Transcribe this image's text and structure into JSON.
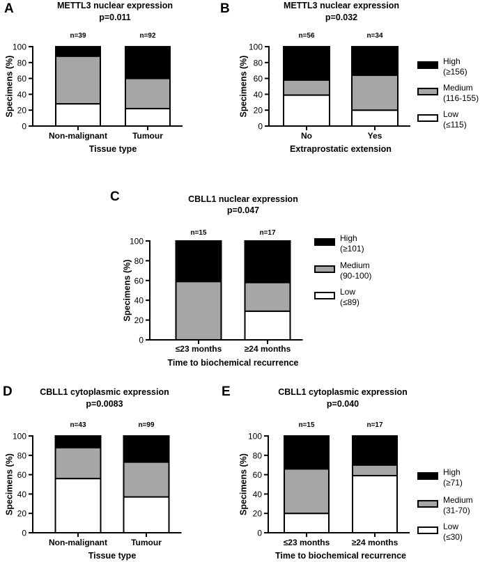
{
  "chart_data": [
    {
      "panel": "A",
      "type": "bar",
      "stacked": true,
      "title": "METTL3 nuclear expression",
      "subtitle": "p=0.011",
      "xlabel": "Tissue type",
      "ylabel": "Specimens (%)",
      "ylim": [
        0,
        100
      ],
      "yticks": [
        "0",
        "20",
        "40",
        "60",
        "80",
        "100"
      ],
      "categories": [
        "Non-malignant",
        "Tumour"
      ],
      "n_labels": [
        "n=39",
        "n=92"
      ],
      "series": [
        {
          "name": "Low",
          "values": [
            28,
            22
          ]
        },
        {
          "name": "Medium",
          "values": [
            60,
            38
          ]
        },
        {
          "name": "High",
          "values": [
            12,
            40
          ]
        }
      ]
    },
    {
      "panel": "B",
      "type": "bar",
      "stacked": true,
      "title": "METTL3 nuclear expression",
      "subtitle": "p=0.032",
      "xlabel": "Extraprostatic extension",
      "ylabel": "Specimens (%)",
      "ylim": [
        0,
        100
      ],
      "yticks": [
        "0",
        "20",
        "40",
        "60",
        "80",
        "100"
      ],
      "categories": [
        "No",
        "Yes"
      ],
      "n_labels": [
        "n=56",
        "n=34"
      ],
      "series": [
        {
          "name": "Low",
          "values": [
            39,
            20
          ]
        },
        {
          "name": "Medium",
          "values": [
            19,
            44
          ]
        },
        {
          "name": "High",
          "values": [
            42,
            36
          ]
        }
      ],
      "legend": [
        {
          "name": "High",
          "range": "(≥156)"
        },
        {
          "name": "Medium",
          "range": "(116-155)"
        },
        {
          "name": "Low",
          "range": "(≤115)"
        }
      ]
    },
    {
      "panel": "C",
      "type": "bar",
      "stacked": true,
      "title": "CBLL1 nuclear expression",
      "subtitle": "p=0.047",
      "xlabel": "Time to biochemical recurrence",
      "ylabel": "Specimens (%)",
      "ylim": [
        0,
        100
      ],
      "yticks": [
        "0",
        "20",
        "40",
        "60",
        "80",
        "100"
      ],
      "categories": [
        "≤23 months",
        "≥24 months"
      ],
      "n_labels": [
        "n=15",
        "n=17"
      ],
      "series": [
        {
          "name": "Low",
          "values": [
            0,
            29
          ]
        },
        {
          "name": "Medium",
          "values": [
            59,
            29
          ]
        },
        {
          "name": "High",
          "values": [
            41,
            42
          ]
        }
      ],
      "legend": [
        {
          "name": "High",
          "range": "(≥101)"
        },
        {
          "name": "Medium",
          "range": "(90-100)"
        },
        {
          "name": "Low",
          "range": "(≤89)"
        }
      ]
    },
    {
      "panel": "D",
      "type": "bar",
      "stacked": true,
      "title": "CBLL1 cytoplasmic expression",
      "subtitle": "p=0.0083",
      "xlabel": "Tissue type",
      "ylabel": "Specimens (%)",
      "ylim": [
        0,
        100
      ],
      "yticks": [
        "0",
        "20",
        "40",
        "60",
        "80",
        "100"
      ],
      "categories": [
        "Non-malignant",
        "Tumour"
      ],
      "n_labels": [
        "n=43",
        "n=99"
      ],
      "series": [
        {
          "name": "Low",
          "values": [
            56,
            37
          ]
        },
        {
          "name": "Medium",
          "values": [
            32,
            36
          ]
        },
        {
          "name": "High",
          "values": [
            12,
            27
          ]
        }
      ]
    },
    {
      "panel": "E",
      "type": "bar",
      "stacked": true,
      "title": "CBLL1 cytoplasmic expression",
      "subtitle": "p=0.040",
      "xlabel": "Time to biochemical recurrence",
      "ylabel": "Specimens (%)",
      "ylim": [
        0,
        100
      ],
      "yticks": [
        "0",
        "20",
        "40",
        "60",
        "80",
        "100"
      ],
      "categories": [
        "≤23 months",
        "≥24 months"
      ],
      "n_labels": [
        "n=15",
        "n=17"
      ],
      "series": [
        {
          "name": "Low",
          "values": [
            20,
            59
          ]
        },
        {
          "name": "Medium",
          "values": [
            46,
            11
          ]
        },
        {
          "name": "High",
          "values": [
            34,
            30
          ]
        }
      ],
      "legend": [
        {
          "name": "High",
          "range": "(≥71)"
        },
        {
          "name": "Medium",
          "range": "(31-70)"
        },
        {
          "name": "Low",
          "range": "(≤30)"
        }
      ]
    }
  ],
  "colors": {
    "High": "#000000",
    "Medium": "#a6a6a6",
    "Low": "#ffffff",
    "axis": "#000000",
    "text": "#000000"
  }
}
